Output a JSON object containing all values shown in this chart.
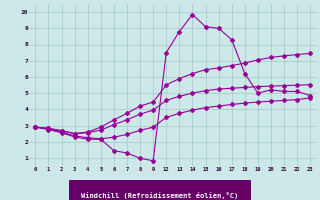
{
  "bg_color": "#cce8e8",
  "line_color": "#990099",
  "grid_color": "#aacccc",
  "xlabel": "Windchill (Refroidissement éolien,°C)",
  "ylabel_ticks": [
    1,
    2,
    3,
    4,
    5,
    6,
    7,
    8,
    9,
    10
  ],
  "xtick_labels": [
    "0",
    "1",
    "2",
    "3",
    "4",
    "5",
    "6",
    "7",
    "8",
    "9",
    "12",
    "13",
    "14",
    "15",
    "16",
    "17",
    "18",
    "19",
    "20",
    "21",
    "22",
    "23"
  ],
  "xlim": [
    -0.5,
    21.5
  ],
  "ylim": [
    0.5,
    10.5
  ],
  "series": [
    {
      "x": [
        0,
        1,
        2,
        3,
        4,
        5,
        6,
        7,
        8,
        9,
        10,
        11,
        12,
        13,
        14,
        15,
        16,
        17,
        18,
        19,
        20,
        21
      ],
      "y": [
        2.9,
        2.75,
        2.55,
        2.3,
        2.15,
        2.15,
        1.45,
        1.3,
        0.98,
        0.82,
        7.5,
        8.8,
        9.85,
        9.1,
        9.0,
        8.3,
        6.2,
        5.0,
        5.2,
        5.1,
        5.1,
        4.85
      ]
    },
    {
      "x": [
        0,
        1,
        2,
        3,
        4,
        5,
        6,
        7,
        8,
        9,
        10,
        11,
        12,
        13,
        14,
        15,
        16,
        17,
        18,
        19,
        20,
        21
      ],
      "y": [
        2.9,
        2.8,
        2.6,
        2.35,
        2.25,
        2.18,
        2.28,
        2.45,
        2.7,
        2.9,
        3.5,
        3.75,
        3.95,
        4.1,
        4.2,
        4.3,
        4.38,
        4.45,
        4.5,
        4.55,
        4.6,
        4.7
      ]
    },
    {
      "x": [
        0,
        1,
        2,
        3,
        4,
        5,
        6,
        7,
        8,
        9,
        10,
        11,
        12,
        13,
        14,
        15,
        16,
        17,
        18,
        19,
        20,
        21
      ],
      "y": [
        2.9,
        2.82,
        2.68,
        2.5,
        2.55,
        2.72,
        3.05,
        3.35,
        3.7,
        3.95,
        4.55,
        4.8,
        5.0,
        5.15,
        5.25,
        5.3,
        5.35,
        5.4,
        5.43,
        5.46,
        5.49,
        5.52
      ]
    },
    {
      "x": [
        0,
        1,
        2,
        3,
        4,
        5,
        6,
        7,
        8,
        9,
        10,
        11,
        12,
        13,
        14,
        15,
        16,
        17,
        18,
        19,
        20,
        21
      ],
      "y": [
        2.9,
        2.82,
        2.68,
        2.5,
        2.6,
        2.9,
        3.35,
        3.75,
        4.2,
        4.45,
        5.5,
        5.9,
        6.2,
        6.45,
        6.55,
        6.7,
        6.85,
        7.05,
        7.2,
        7.3,
        7.38,
        7.45
      ]
    }
  ]
}
